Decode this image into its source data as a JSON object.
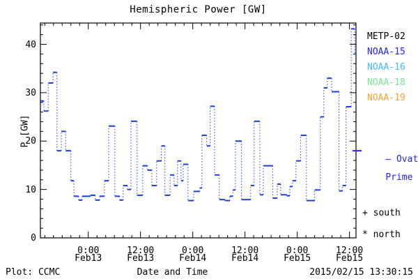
{
  "title": "Hemispheric Power [GW]",
  "y_axis_title": "P [GW]",
  "x_axis_title": "Date and Time",
  "footer": {
    "credit": "Plot: CCMC",
    "timestamp": "2015/02/15 13:30:15"
  },
  "legend": {
    "satellites": [
      {
        "label": "METP-02",
        "color": "#000000"
      },
      {
        "label": "NOAA-15",
        "color": "#2222ff"
      },
      {
        "label": "NOAA-16",
        "color": "#44bbff"
      },
      {
        "label": "NOAA-18",
        "color": "#77e896"
      },
      {
        "label": "NOAA-19",
        "color": "#ffa030"
      }
    ],
    "model_line1": "— Ovation",
    "model_line2": "Prime HPI",
    "model_color": "#2222ff",
    "model_marker_gw": 18,
    "south_marker": "+ south",
    "north_marker": "* north"
  },
  "chart_data": {
    "type": "line",
    "subtype": "step-function, solid horizontal caps joined by dotted vertical connectors",
    "title": "Hemispheric Power [GW]",
    "xlabel": "Date and Time",
    "ylabel": "P [GW]",
    "ylim": [
      0,
      44.4
    ],
    "y_ticks": [
      0,
      10,
      20,
      30,
      40
    ],
    "y_minor_step_gw": 2,
    "x_axis_hours_range": [
      0,
      72.5
    ],
    "x_minor_step_hours": 2,
    "x_ticks": [
      {
        "hour": 11,
        "time": "0:00",
        "date": "Feb13"
      },
      {
        "hour": 23,
        "time": "12:00",
        "date": "Feb13"
      },
      {
        "hour": 35,
        "time": "0:00",
        "date": "Feb14"
      },
      {
        "hour": 47,
        "time": "12:00",
        "date": "Feb14"
      },
      {
        "hour": 59,
        "time": "0:00",
        "date": "Feb15"
      },
      {
        "hour": 71,
        "time": "12:00",
        "date": "Feb15"
      }
    ],
    "grid": false,
    "legend_position": "right-outside",
    "line_color": "#1c3edd",
    "series": [
      {
        "name": "Ovation Prime HPI",
        "units": "GW",
        "segments_hour_start_end_value": [
          [
            0.0,
            0.8,
            28.3
          ],
          [
            0.8,
            1.8,
            26.2
          ],
          [
            1.8,
            2.9,
            32.0
          ],
          [
            2.9,
            3.8,
            34.2
          ],
          [
            3.8,
            4.8,
            18.0
          ],
          [
            4.8,
            5.8,
            22.0
          ],
          [
            5.8,
            7.0,
            18.0
          ],
          [
            7.0,
            7.7,
            11.8
          ],
          [
            7.7,
            8.8,
            8.6
          ],
          [
            8.8,
            9.6,
            7.8
          ],
          [
            9.6,
            11.5,
            8.6
          ],
          [
            11.5,
            12.6,
            8.8
          ],
          [
            12.6,
            13.6,
            7.8
          ],
          [
            13.6,
            14.7,
            8.6
          ],
          [
            14.7,
            15.7,
            11.8
          ],
          [
            15.7,
            17.1,
            23.1
          ],
          [
            17.1,
            18.2,
            8.6
          ],
          [
            18.2,
            19.0,
            7.8
          ],
          [
            19.0,
            20.0,
            10.8
          ],
          [
            20.0,
            20.8,
            10.0
          ],
          [
            20.8,
            22.2,
            24.1
          ],
          [
            22.2,
            23.5,
            8.8
          ],
          [
            23.5,
            24.6,
            14.9
          ],
          [
            24.6,
            25.6,
            14.0
          ],
          [
            25.6,
            26.7,
            10.8
          ],
          [
            26.7,
            27.8,
            15.9
          ],
          [
            27.8,
            28.6,
            19.0
          ],
          [
            28.6,
            29.8,
            8.8
          ],
          [
            29.8,
            30.7,
            13.0
          ],
          [
            30.7,
            31.5,
            10.8
          ],
          [
            31.5,
            32.3,
            15.9
          ],
          [
            32.3,
            32.8,
            11.8
          ],
          [
            32.8,
            33.9,
            15.2
          ],
          [
            33.9,
            35.2,
            7.7
          ],
          [
            35.2,
            36.6,
            9.6
          ],
          [
            36.6,
            37.1,
            10.3
          ],
          [
            37.1,
            38.2,
            21.2
          ],
          [
            38.2,
            39.0,
            19.0
          ],
          [
            39.0,
            40.0,
            27.2
          ],
          [
            40.0,
            41.1,
            13.0
          ],
          [
            41.1,
            42.4,
            7.9
          ],
          [
            42.4,
            43.5,
            7.7
          ],
          [
            43.5,
            44.2,
            8.6
          ],
          [
            44.2,
            44.8,
            9.9
          ],
          [
            44.8,
            46.2,
            20.0
          ],
          [
            46.2,
            48.3,
            7.9
          ],
          [
            48.3,
            49.1,
            10.8
          ],
          [
            49.1,
            50.4,
            24.1
          ],
          [
            50.4,
            51.2,
            8.9
          ],
          [
            51.2,
            53.4,
            14.9
          ],
          [
            53.4,
            54.4,
            8.2
          ],
          [
            54.4,
            55.2,
            11.1
          ],
          [
            55.2,
            56.6,
            8.9
          ],
          [
            56.6,
            57.3,
            8.7
          ],
          [
            57.3,
            57.9,
            10.6
          ],
          [
            57.9,
            58.7,
            11.8
          ],
          [
            58.7,
            59.8,
            15.9
          ],
          [
            59.8,
            61.1,
            21.2
          ],
          [
            61.1,
            63.0,
            7.7
          ],
          [
            63.0,
            64.3,
            9.9
          ],
          [
            64.3,
            65.1,
            25.0
          ],
          [
            65.1,
            65.9,
            31.0
          ],
          [
            65.9,
            66.9,
            33.0
          ],
          [
            66.9,
            68.6,
            30.2
          ],
          [
            68.6,
            69.4,
            9.7
          ],
          [
            69.4,
            70.2,
            10.8
          ],
          [
            70.2,
            71.4,
            27.1
          ],
          [
            71.4,
            72.2,
            43.2
          ],
          [
            72.2,
            72.5,
            38.0
          ]
        ]
      }
    ]
  }
}
